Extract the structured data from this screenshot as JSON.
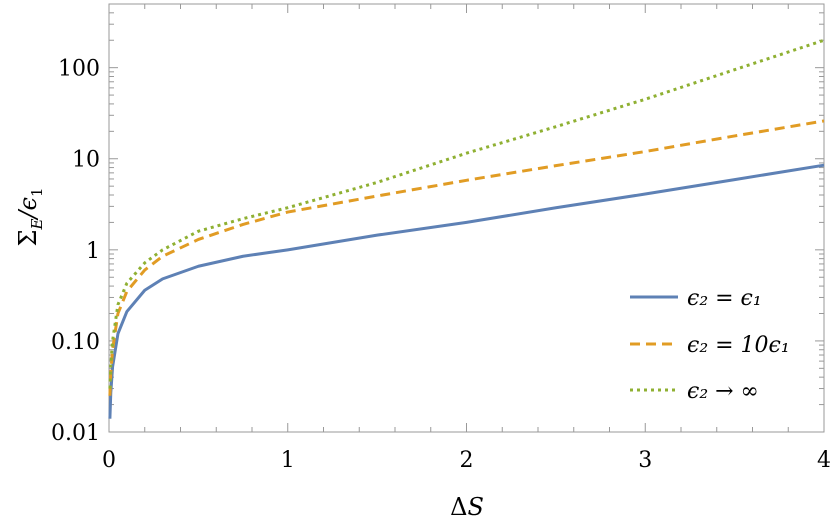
{
  "chart_data": {
    "type": "line",
    "title": "",
    "xlabel": "ΔS",
    "ylabel": "Σ_E/ϵ₁",
    "xlim": [
      0,
      4
    ],
    "ylim": [
      0.01,
      500
    ],
    "yscale": "log",
    "grid": false,
    "legend_position": "bottom-right",
    "x_ticks": [
      {
        "value": 0,
        "label": "0"
      },
      {
        "value": 1,
        "label": "1"
      },
      {
        "value": 2,
        "label": "2"
      },
      {
        "value": 3,
        "label": "3"
      },
      {
        "value": 4,
        "label": "4"
      }
    ],
    "y_ticks": [
      {
        "value": 0.01,
        "label": "0.01"
      },
      {
        "value": 0.1,
        "label": "0.10"
      },
      {
        "value": 1,
        "label": "1"
      },
      {
        "value": 10,
        "label": "10"
      },
      {
        "value": 100,
        "label": "100"
      }
    ],
    "series": [
      {
        "name": "ϵ₂ = ϵ₁",
        "color": "#5e81b5",
        "style": "solid",
        "points": [
          [
            0.005,
            0.014
          ],
          [
            0.01,
            0.027
          ],
          [
            0.02,
            0.052
          ],
          [
            0.05,
            0.12
          ],
          [
            0.1,
            0.21
          ],
          [
            0.2,
            0.36
          ],
          [
            0.3,
            0.48
          ],
          [
            0.5,
            0.66
          ],
          [
            0.75,
            0.85
          ],
          [
            1.0,
            1.0
          ],
          [
            1.5,
            1.45
          ],
          [
            2.0,
            2.0
          ],
          [
            2.5,
            2.9
          ],
          [
            3.0,
            4.1
          ],
          [
            3.5,
            5.9
          ],
          [
            4.0,
            8.5
          ]
        ]
      },
      {
        "name": "ϵ₂ = 10ϵ₁",
        "color": "#e19c24",
        "style": "dashed",
        "points": [
          [
            0.005,
            0.025
          ],
          [
            0.01,
            0.045
          ],
          [
            0.02,
            0.08
          ],
          [
            0.05,
            0.2
          ],
          [
            0.1,
            0.35
          ],
          [
            0.2,
            0.6
          ],
          [
            0.3,
            0.85
          ],
          [
            0.5,
            1.3
          ],
          [
            0.75,
            1.9
          ],
          [
            1.0,
            2.6
          ],
          [
            1.5,
            3.9
          ],
          [
            2.0,
            5.8
          ],
          [
            2.5,
            8.4
          ],
          [
            3.0,
            12.0
          ],
          [
            3.5,
            17.8
          ],
          [
            4.0,
            26.0
          ]
        ]
      },
      {
        "name": "ϵ₂ → ∞",
        "color": "#8fb032",
        "style": "dotted",
        "points": [
          [
            0.005,
            0.03
          ],
          [
            0.01,
            0.055
          ],
          [
            0.02,
            0.1
          ],
          [
            0.05,
            0.25
          ],
          [
            0.1,
            0.43
          ],
          [
            0.2,
            0.72
          ],
          [
            0.3,
            1.0
          ],
          [
            0.5,
            1.6
          ],
          [
            0.75,
            2.2
          ],
          [
            1.0,
            2.9
          ],
          [
            1.5,
            5.5
          ],
          [
            2.0,
            11.5
          ],
          [
            2.5,
            22.5
          ],
          [
            3.0,
            45.0
          ],
          [
            3.5,
            95.0
          ],
          [
            4.0,
            200.0
          ]
        ]
      }
    ]
  }
}
